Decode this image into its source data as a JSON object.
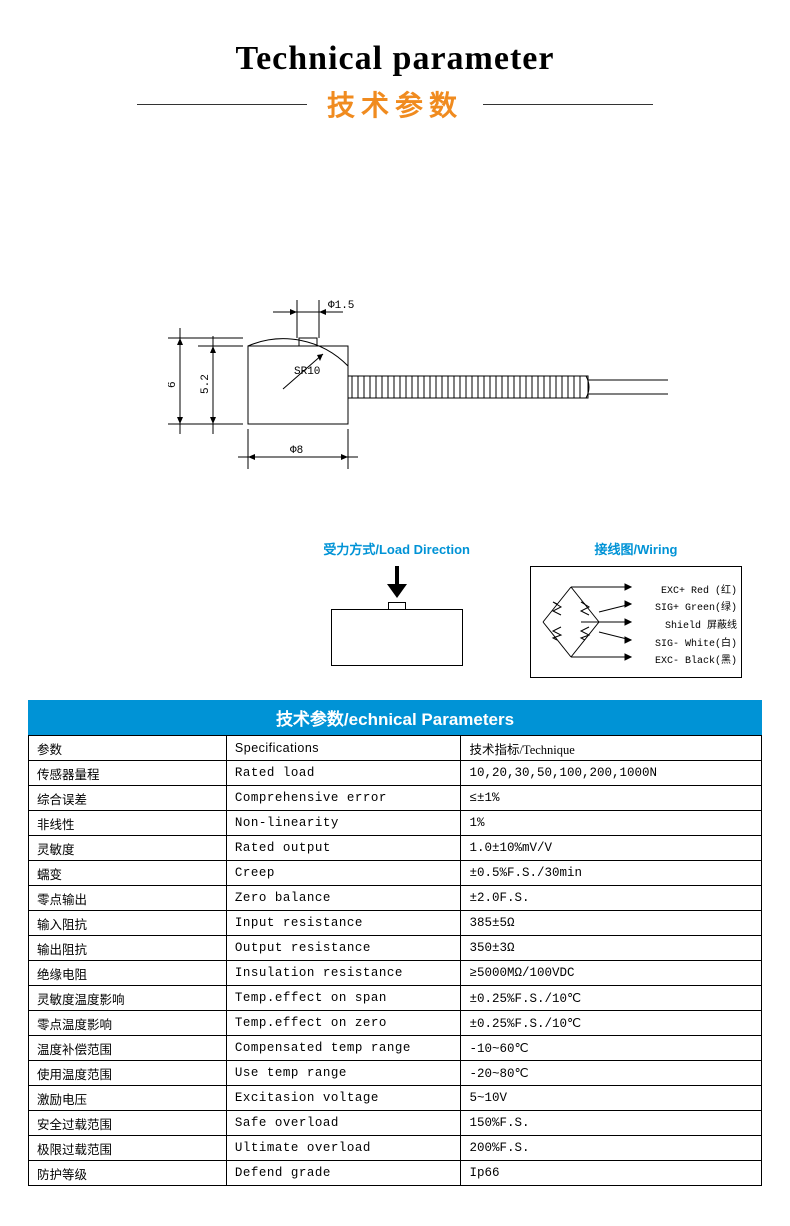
{
  "title": {
    "en": "Technical parameter",
    "cn": "技术参数"
  },
  "diagram": {
    "dims": {
      "d1": "Φ1.5",
      "d2": "Φ8",
      "h1": "6",
      "h2": "5.2",
      "r": "SR10"
    },
    "stroke": "#000000",
    "stroke_width": 1
  },
  "info": {
    "load_label": "受力方式/Load Direction",
    "wiring_label": "接线图/Wiring",
    "label_color": "#0093d6",
    "label_fontsize": 13
  },
  "wiring": {
    "lines": [
      "EXC+ Red  (红)",
      "SIG+ Green(绿)",
      "Shield  屏蔽线",
      "SIG- White(白)",
      "EXC- Black(黑)"
    ]
  },
  "table": {
    "header": "技术参数/echnical Parameters",
    "header_bg": "#0093d6",
    "header_color": "#ffffff",
    "columns": [
      "参数",
      "Specifications",
      "技术指标/Technique"
    ],
    "col_widths": [
      "27%",
      "32%",
      "41%"
    ],
    "border_color": "#000000",
    "font_size": 12.5,
    "rows": [
      [
        "传感器量程",
        "Rated load",
        "10,20,30,50,100,200,1000N"
      ],
      [
        "综合误差",
        "Comprehensive error",
        "≤±1%"
      ],
      [
        "非线性",
        "Non-linearity",
        "1%"
      ],
      [
        "灵敏度",
        "Rated output",
        "1.0±10%mV/V"
      ],
      [
        "蠕变",
        "Creep",
        "±0.5%F.S./30min"
      ],
      [
        "零点输出",
        "Zero balance",
        "±2.0F.S."
      ],
      [
        "输入阻抗",
        "Input resistance",
        "385±5Ω"
      ],
      [
        "输出阻抗",
        "Output resistance",
        "350±3Ω"
      ],
      [
        "绝缘电阻",
        "Insulation resistance",
        "≥5000MΩ/100VDC"
      ],
      [
        "灵敏度温度影响",
        "Temp.effect on span",
        "±0.25%F.S./10℃"
      ],
      [
        "零点温度影响",
        "Temp.effect on zero",
        "±0.25%F.S./10℃"
      ],
      [
        "温度补偿范围",
        "Compensated temp range",
        "-10~60℃"
      ],
      [
        "使用温度范围",
        "Use temp range",
        "-20~80℃"
      ],
      [
        "激励电压",
        "Excitasion voltage",
        "5~10V"
      ],
      [
        "安全过载范围",
        "Safe overload",
        "150%F.S."
      ],
      [
        "极限过载范围",
        "Ultimate overload",
        "200%F.S."
      ],
      [
        "防护等级",
        "Defend grade",
        "Ip66"
      ]
    ]
  }
}
